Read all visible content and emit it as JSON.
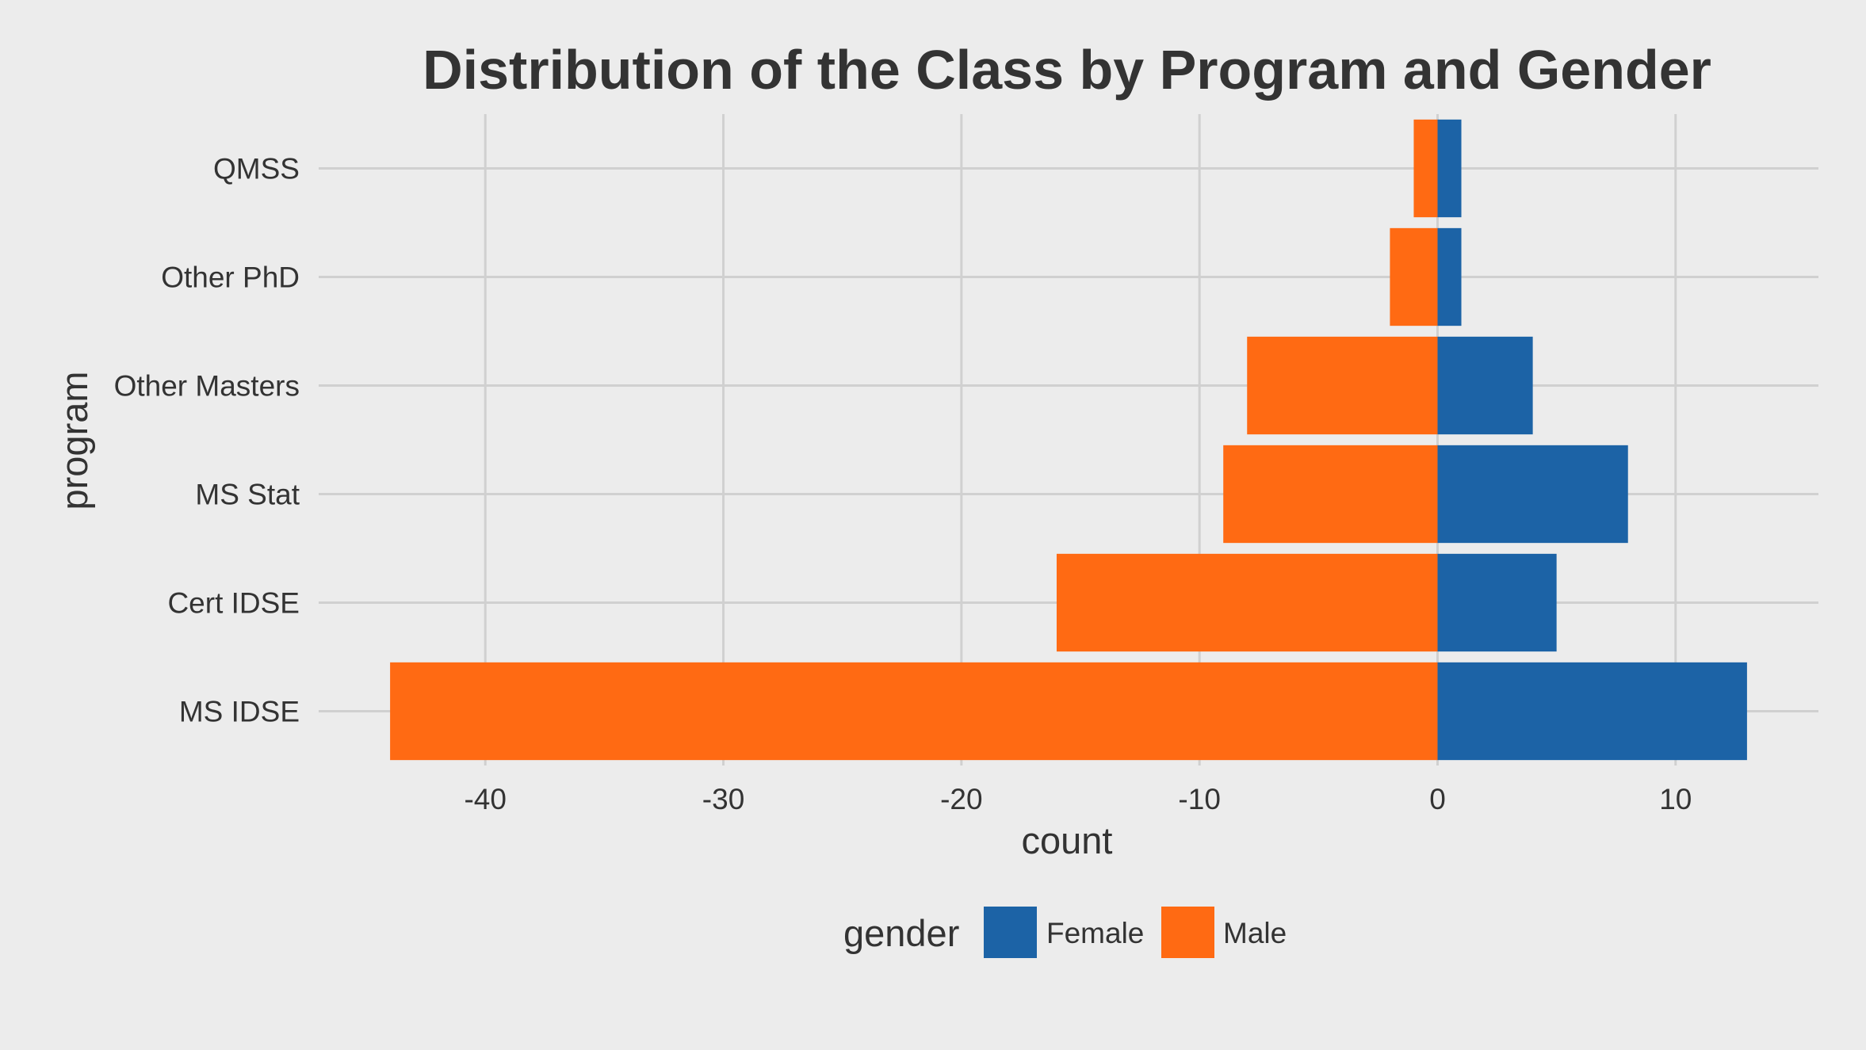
{
  "chart_data": {
    "type": "bar",
    "orientation": "horizontal",
    "stacking": "diverging",
    "title": "Distribution of the Class by Program and Gender",
    "xlabel": "count",
    "ylabel": "program",
    "categories": [
      "MS IDSE",
      "Cert IDSE",
      "MS Stat",
      "Other Masters",
      "Other PhD",
      "QMSS"
    ],
    "series": [
      {
        "name": "Female",
        "color": "#1c63a6",
        "values": [
          13,
          5,
          8,
          4,
          1,
          1
        ]
      },
      {
        "name": "Male",
        "color": "#ff6a13",
        "values": [
          -44,
          -16,
          -9,
          -8,
          -2,
          -1
        ]
      }
    ],
    "xlim": [
      -47,
      16
    ],
    "xticks": [
      -40,
      -30,
      -20,
      -10,
      0,
      10
    ],
    "grid": true,
    "legend": {
      "title": "gender",
      "position": "bottom"
    }
  }
}
